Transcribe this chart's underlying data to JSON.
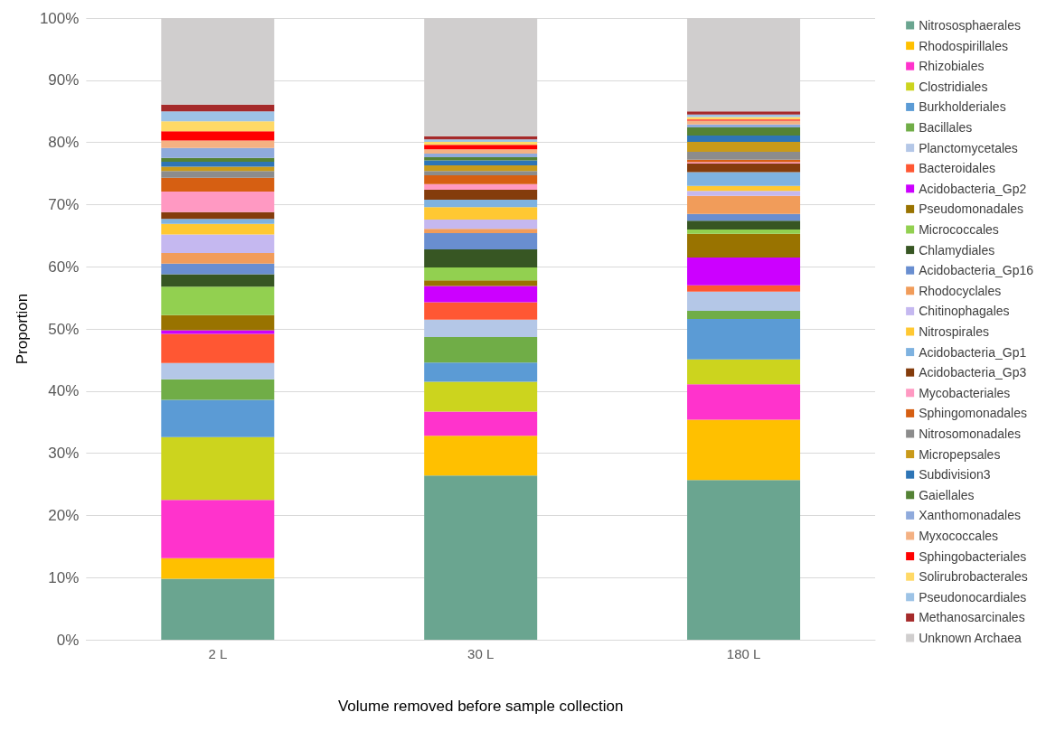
{
  "chart_data": {
    "type": "bar",
    "stacked": true,
    "xlabel": "Volume removed before sample collection",
    "ylabel": "Proportion",
    "categories": [
      "2 L",
      "30 L",
      "180 L"
    ],
    "ylim": [
      0,
      100
    ],
    "yticks": [
      {
        "value": 0,
        "label": "0%"
      },
      {
        "value": 10,
        "label": "10%"
      },
      {
        "value": 20,
        "label": "20%"
      },
      {
        "value": 30,
        "label": "30%"
      },
      {
        "value": 40,
        "label": "40%"
      },
      {
        "value": 50,
        "label": "50%"
      },
      {
        "value": 60,
        "label": "60%"
      },
      {
        "value": 70,
        "label": "70%"
      },
      {
        "value": 80,
        "label": "80%"
      },
      {
        "value": 90,
        "label": "90%"
      },
      {
        "value": 100,
        "label": "100%"
      }
    ],
    "grid": "y",
    "legend": "right",
    "series": [
      {
        "name": "Nitrososphaerales",
        "color": "#6aa590",
        "values": [
          9.8,
          26.4,
          25.7
        ]
      },
      {
        "name": "Rhodospirillales",
        "color": "#ffc000",
        "values": [
          3.3,
          6.4,
          9.7
        ]
      },
      {
        "name": "Rhizobiales",
        "color": "#ff33cc",
        "values": [
          9.4,
          3.9,
          5.7
        ]
      },
      {
        "name": "Clostridiales",
        "color": "#ccd41e",
        "values": [
          10.1,
          4.8,
          4.0
        ]
      },
      {
        "name": "Burkholderiales",
        "color": "#5b9bd5",
        "values": [
          6.0,
          3.1,
          6.5
        ]
      },
      {
        "name": "Bacillales",
        "color": "#70ad47",
        "values": [
          3.3,
          4.1,
          1.3
        ]
      },
      {
        "name": "Planctomycetales",
        "color": "#b4c7e7",
        "values": [
          2.6,
          2.8,
          3.1
        ]
      },
      {
        "name": "Bacteroidales",
        "color": "#ff5733",
        "values": [
          4.7,
          2.8,
          1.0
        ]
      },
      {
        "name": "Acidobacteria_Gp2",
        "color": "#cc00ff",
        "values": [
          0.6,
          2.6,
          4.5
        ]
      },
      {
        "name": "Pseudomonadales",
        "color": "#997300",
        "values": [
          2.4,
          0.9,
          3.8
        ]
      },
      {
        "name": "Micrococcales",
        "color": "#92d050",
        "values": [
          4.6,
          2.1,
          0.7
        ]
      },
      {
        "name": "Chlamydiales",
        "color": "#375623",
        "values": [
          2.0,
          2.9,
          1.4
        ]
      },
      {
        "name": "Acidobacteria_Gp16",
        "color": "#698ed0",
        "values": [
          1.7,
          2.6,
          1.1
        ]
      },
      {
        "name": "Rhodocyclales",
        "color": "#f19c5a",
        "values": [
          1.7,
          0.7,
          2.9
        ]
      },
      {
        "name": "Chitinophagales",
        "color": "#c5b8f0",
        "values": [
          3.0,
          1.5,
          0.8
        ]
      },
      {
        "name": "Nitrospirales",
        "color": "#ffc832",
        "values": [
          1.7,
          2.0,
          0.8
        ]
      },
      {
        "name": "Acidobacteria_Gp1",
        "color": "#7eb2e0",
        "values": [
          0.8,
          1.2,
          2.2
        ]
      },
      {
        "name": "Acidobacteria_Gp3",
        "color": "#843c0c",
        "values": [
          1.1,
          1.6,
          1.4
        ]
      },
      {
        "name": "Mycobacteriales",
        "color": "#ff99c2",
        "values": [
          3.3,
          0.9,
          0.2
        ]
      },
      {
        "name": "Sphingomonadales",
        "color": "#d65f12",
        "values": [
          2.2,
          1.4,
          0.4
        ]
      },
      {
        "name": "Nitrosomonadales",
        "color": "#8c8c8c",
        "values": [
          1.1,
          0.7,
          1.3
        ]
      },
      {
        "name": "Micropepsales",
        "color": "#c99a1a",
        "values": [
          0.7,
          0.9,
          1.6
        ]
      },
      {
        "name": "Subdivision3",
        "color": "#2e75b6",
        "values": [
          0.8,
          0.8,
          1.0
        ]
      },
      {
        "name": "Gaiellales",
        "color": "#548235",
        "values": [
          0.6,
          0.5,
          1.3
        ]
      },
      {
        "name": "Xanthomonadales",
        "color": "#8faadc",
        "values": [
          1.6,
          0.6,
          0.5
        ]
      },
      {
        "name": "Myxococcales",
        "color": "#f4b183",
        "values": [
          1.2,
          0.7,
          0.6
        ]
      },
      {
        "name": "Sphingobacteriales",
        "color": "#ff0000",
        "values": [
          1.5,
          0.7,
          0.2
        ]
      },
      {
        "name": "Solirubrobacterales",
        "color": "#ffd966",
        "values": [
          1.6,
          0.5,
          0.4
        ]
      },
      {
        "name": "Pseudonocardiales",
        "color": "#9dc3e6",
        "values": [
          1.6,
          0.4,
          0.4
        ]
      },
      {
        "name": "Methanosarcinales",
        "color": "#a52a2a",
        "values": [
          1.1,
          0.5,
          0.5
        ]
      },
      {
        "name": "Unknown Archaea",
        "color": "#d0cece",
        "values": [
          13.9,
          19.0,
          15.0
        ]
      }
    ]
  }
}
